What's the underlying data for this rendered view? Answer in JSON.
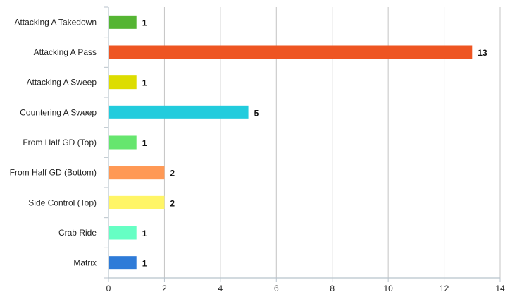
{
  "chart_data": {
    "type": "bar",
    "orientation": "horizontal",
    "title": "",
    "xlabel": "",
    "ylabel": "",
    "xlim": [
      0,
      14
    ],
    "x_ticks": [
      0,
      2,
      4,
      6,
      8,
      10,
      12,
      14
    ],
    "grid": true,
    "legend": "none",
    "categories": [
      "Attacking A Takedown",
      "Attacking A Pass",
      "Attacking A Sweep",
      "Countering A Sweep",
      "From Half GD (Top)",
      "From Half GD (Bottom)",
      "Side Control (Top)",
      "Crab Ride",
      "Matrix"
    ],
    "values": [
      1,
      13,
      1,
      5,
      1,
      2,
      2,
      1,
      1
    ],
    "colors": [
      "#55b533",
      "#ee5522",
      "#dddd00",
      "#22ccdd",
      "#66e66e",
      "#ff9955",
      "#fff566",
      "#66ffc4",
      "#2e7bd8"
    ]
  }
}
